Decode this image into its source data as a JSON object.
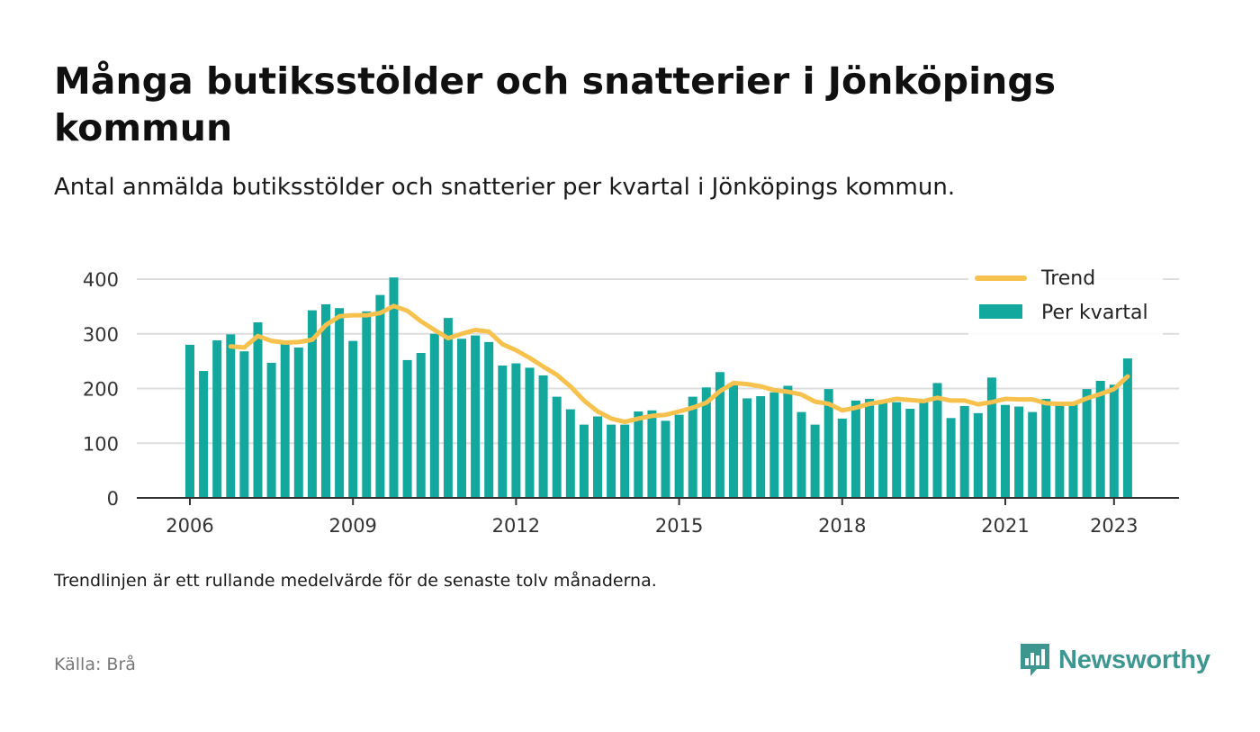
{
  "header": {
    "title": "Många butiksstölder och snatterier i Jönköpings kommun",
    "subtitle": "Antal anmälda butiksstölder och snatterier per kvartal i Jönköpings kommun."
  },
  "footer": {
    "note": "Trendlinjen är ett rullande medelvärde för de senaste tolv månaderna.",
    "source": "Källa: Brå",
    "brand": "Newsworthy"
  },
  "colors": {
    "bar": "#13a89e",
    "trend": "#f7c14e",
    "grid": "#dddddd",
    "axis": "#333333",
    "brand": "#3d968f"
  },
  "chart_data": {
    "type": "bar",
    "x_start": "2006 Q1",
    "x_ticks": [
      "2006",
      "2009",
      "2012",
      "2015",
      "2018",
      "2021",
      "2023"
    ],
    "y_ticks": [
      "0",
      "100",
      "200",
      "300",
      "400"
    ],
    "ylim": [
      0,
      420
    ],
    "grid": true,
    "legend_position": "top-right",
    "series": [
      {
        "name": "Per kvartal",
        "type": "bar",
        "values": [
          280,
          232,
          288,
          299,
          268,
          321,
          247,
          283,
          275,
          343,
          354,
          347,
          287,
          341,
          371,
          403,
          252,
          265,
          300,
          329,
          291,
          297,
          285,
          242,
          246,
          238,
          224,
          185,
          162,
          134,
          149,
          134,
          134,
          158,
          160,
          141,
          152,
          185,
          202,
          230,
          207,
          182,
          186,
          193,
          205,
          157,
          134,
          199,
          145,
          178,
          181,
          178,
          175,
          163,
          181,
          210,
          146,
          168,
          155,
          220,
          170,
          167,
          157,
          181,
          175,
          173,
          199,
          214,
          207,
          255
        ]
      },
      {
        "name": "Trend",
        "type": "line",
        "values": [
          null,
          null,
          null,
          277,
          275,
          296,
          287,
          284,
          285,
          289,
          316,
          332,
          334,
          334,
          338,
          351,
          342,
          323,
          307,
          292,
          300,
          307,
          304,
          281,
          270,
          256,
          240,
          225,
          204,
          178,
          158,
          145,
          139,
          145,
          150,
          152,
          158,
          165,
          174,
          195,
          210,
          208,
          204,
          197,
          194,
          189,
          176,
          172,
          160,
          165,
          172,
          176,
          181,
          179,
          177,
          183,
          178,
          178,
          171,
          175,
          181,
          180,
          180,
          173,
          172,
          172,
          182,
          190,
          199,
          222
        ]
      }
    ]
  }
}
